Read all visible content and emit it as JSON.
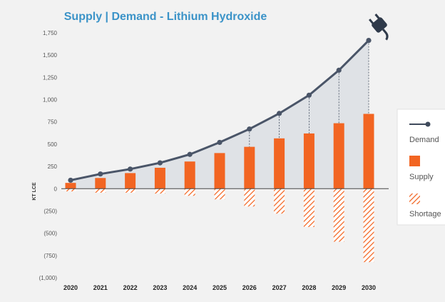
{
  "chart_data": {
    "type": "bar",
    "title": "Supply | Demand - Lithium Hydroxide",
    "ylabel": "KT LCE",
    "xlabel": "",
    "categories": [
      "2020",
      "2021",
      "2022",
      "2023",
      "2024",
      "2025",
      "2026",
      "2027",
      "2028",
      "2029",
      "2030"
    ],
    "series": [
      {
        "name": "Demand",
        "kind": "line",
        "values": [
          95,
          165,
          220,
          290,
          385,
          520,
          670,
          845,
          1050,
          1330,
          1665
        ]
      },
      {
        "name": "Supply",
        "kind": "bar",
        "values": [
          65,
          120,
          175,
          235,
          305,
          400,
          470,
          565,
          620,
          735,
          840
        ]
      },
      {
        "name": "Shortage",
        "kind": "bar-hatched",
        "values": [
          -30,
          -45,
          -45,
          -55,
          -80,
          -120,
          -200,
          -280,
          -430,
          -595,
          -825
        ]
      }
    ],
    "ylim": [
      -1000,
      1750
    ],
    "yticks": [
      1750,
      1500,
      1250,
      1000,
      750,
      500,
      250,
      0,
      -250,
      -500,
      -750,
      -1000
    ],
    "ytick_labels": [
      "1,750",
      "1,500",
      "1,250",
      "1,000",
      "750",
      "500",
      "250",
      "0",
      "(250)",
      "(500)",
      "(750)",
      "(1,000)"
    ],
    "legend_position": "right",
    "grid": false,
    "colors": {
      "demand": "#4a5568",
      "supply": "#f26522",
      "shortage": "#f26522",
      "area": "#dfe2e6",
      "title": "#3b93c8"
    }
  }
}
